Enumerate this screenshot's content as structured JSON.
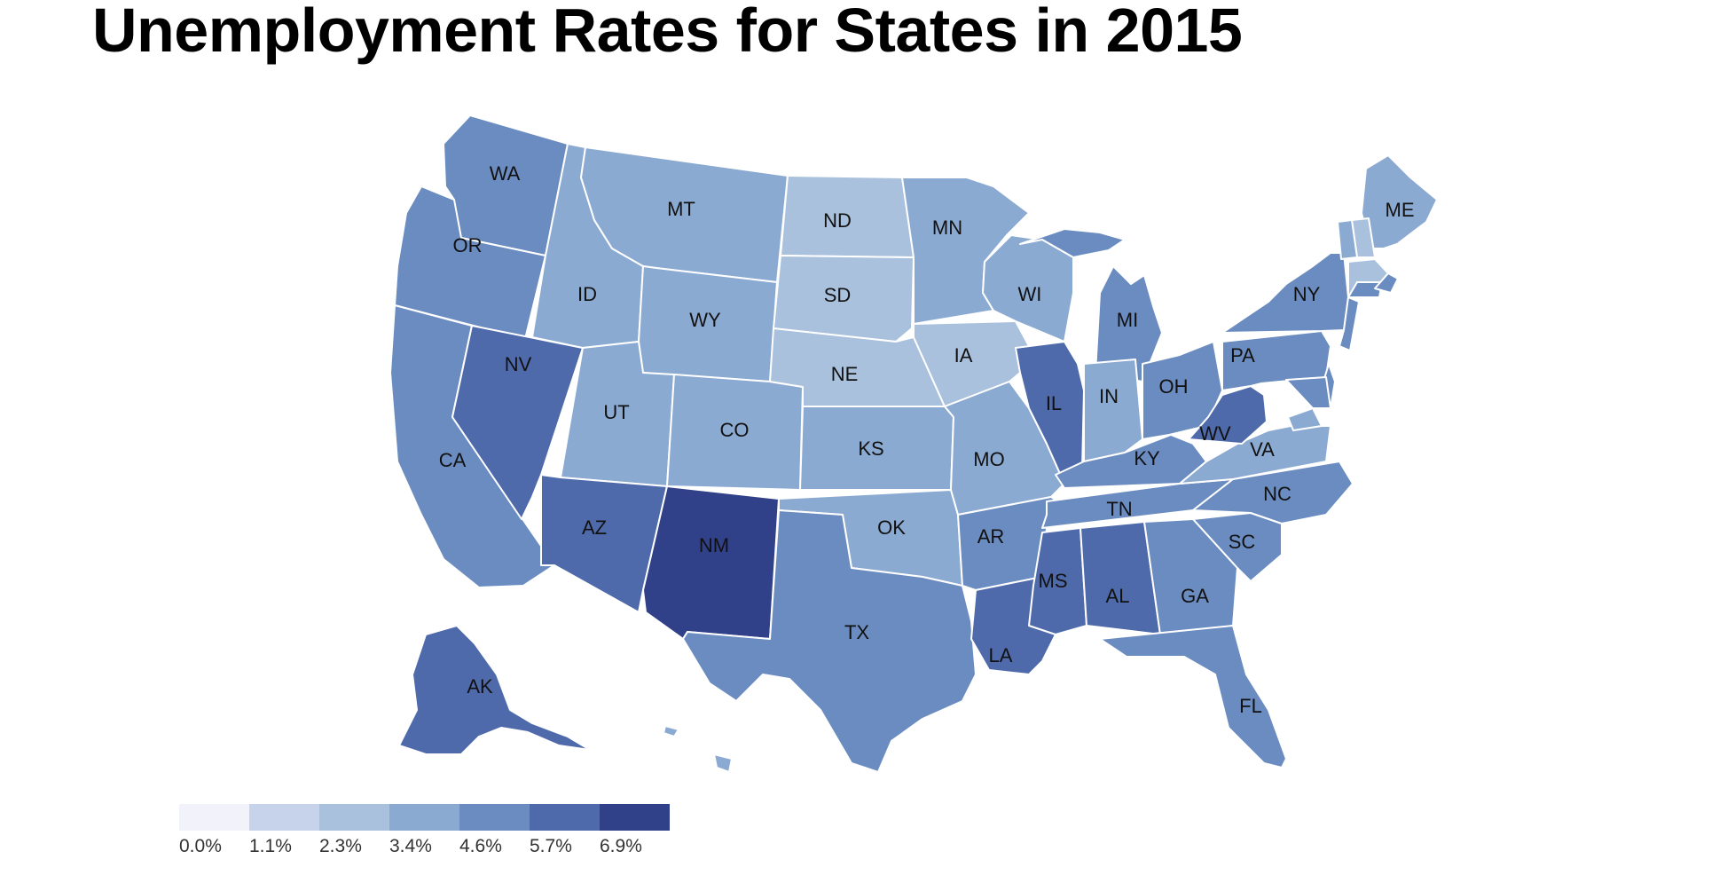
{
  "title": "Unemployment Rates for States in 2015",
  "legend": {
    "bins": [
      {
        "label": "0.0%",
        "color": "#f2f2fb"
      },
      {
        "label": "1.1%",
        "color": "#c6d3ea"
      },
      {
        "label": "2.3%",
        "color": "#a9c1dd"
      },
      {
        "label": "3.4%",
        "color": "#8baad2"
      },
      {
        "label": "4.6%",
        "color": "#6b8cc0"
      },
      {
        "label": "5.7%",
        "color": "#4f6aab"
      },
      {
        "label": "6.9%",
        "color": "#314189"
      }
    ]
  },
  "states": [
    {
      "abbr": "WA",
      "bin": 4
    },
    {
      "abbr": "OR",
      "bin": 4
    },
    {
      "abbr": "CA",
      "bin": 4
    },
    {
      "abbr": "NV",
      "bin": 5
    },
    {
      "abbr": "ID",
      "bin": 3
    },
    {
      "abbr": "MT",
      "bin": 3
    },
    {
      "abbr": "WY",
      "bin": 3
    },
    {
      "abbr": "UT",
      "bin": 3
    },
    {
      "abbr": "CO",
      "bin": 3
    },
    {
      "abbr": "AZ",
      "bin": 5
    },
    {
      "abbr": "NM",
      "bin": 6
    },
    {
      "abbr": "ND",
      "bin": 2
    },
    {
      "abbr": "SD",
      "bin": 2
    },
    {
      "abbr": "NE",
      "bin": 2
    },
    {
      "abbr": "KS",
      "bin": 3
    },
    {
      "abbr": "OK",
      "bin": 3
    },
    {
      "abbr": "TX",
      "bin": 4
    },
    {
      "abbr": "MN",
      "bin": 3
    },
    {
      "abbr": "IA",
      "bin": 2
    },
    {
      "abbr": "MO",
      "bin": 3
    },
    {
      "abbr": "AR",
      "bin": 4
    },
    {
      "abbr": "LA",
      "bin": 5
    },
    {
      "abbr": "WI",
      "bin": 3
    },
    {
      "abbr": "IL",
      "bin": 5
    },
    {
      "abbr": "MI",
      "bin": 4
    },
    {
      "abbr": "IN",
      "bin": 3
    },
    {
      "abbr": "OH",
      "bin": 4
    },
    {
      "abbr": "KY",
      "bin": 4
    },
    {
      "abbr": "TN",
      "bin": 4
    },
    {
      "abbr": "MS",
      "bin": 5
    },
    {
      "abbr": "AL",
      "bin": 5
    },
    {
      "abbr": "GA",
      "bin": 4
    },
    {
      "abbr": "FL",
      "bin": 4
    },
    {
      "abbr": "SC",
      "bin": 4
    },
    {
      "abbr": "NC",
      "bin": 4
    },
    {
      "abbr": "VA",
      "bin": 3
    },
    {
      "abbr": "WV",
      "bin": 5
    },
    {
      "abbr": "PA",
      "bin": 4
    },
    {
      "abbr": "NY",
      "bin": 4
    },
    {
      "abbr": "ME",
      "bin": 3
    },
    {
      "abbr": "AK",
      "bin": 5
    },
    {
      "abbr": "",
      "bin": 2
    },
    {
      "abbr": "",
      "bin": 3
    },
    {
      "abbr": "",
      "bin": 2
    },
    {
      "abbr": "",
      "bin": 4
    },
    {
      "abbr": "",
      "bin": 4
    },
    {
      "abbr": "",
      "bin": 4
    },
    {
      "abbr": "",
      "bin": 3
    },
    {
      "abbr": "",
      "bin": 4
    },
    {
      "abbr": "",
      "bin": 4
    },
    {
      "abbr": "",
      "bin": 3
    }
  ]
}
